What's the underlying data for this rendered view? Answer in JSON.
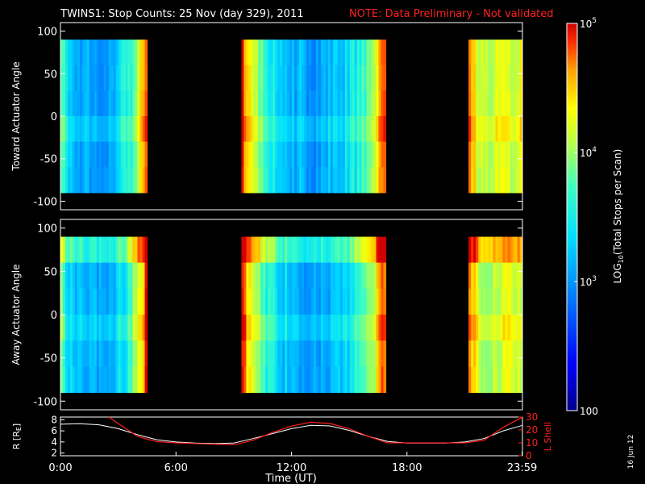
{
  "title": "TWINS1: Stop Counts: 25 Nov (day 329), 2011",
  "note": "NOTE: Data Preliminary - Not validated",
  "date_stamp": "16 Jun 12",
  "colors": {
    "background": "#000000",
    "axis": "#ffffff",
    "note": "#ff2020",
    "lshell": "#ff2020",
    "radius": "#ffffff"
  },
  "chart_data": [
    {
      "type": "heatmap",
      "ylabel": "Toward Actuator Angle",
      "ylim": [
        -110,
        110
      ],
      "yticks": [
        100,
        50,
        0,
        -50,
        -100
      ],
      "xlim_hours": [
        0,
        24
      ],
      "angle_range": [
        -90,
        90
      ],
      "data_segments_hours": [
        [
          0.0,
          4.5
        ],
        [
          9.4,
          16.9
        ],
        [
          21.2,
          23.99
        ]
      ],
      "description_values": "log10 stop counts mostly ~3 (blue) in middle of segments, ~4.7-5 (orange/red) at segment edges"
    },
    {
      "type": "heatmap",
      "ylabel": "Away Actuator Angle",
      "ylim": [
        -110,
        110
      ],
      "yticks": [
        100,
        50,
        0,
        -50,
        -100
      ],
      "xlim_hours": [
        0,
        24
      ],
      "angle_range": [
        -90,
        90
      ],
      "data_segments_hours": [
        [
          0.0,
          4.5
        ],
        [
          9.4,
          16.9
        ],
        [
          21.2,
          23.99
        ]
      ]
    },
    {
      "type": "line",
      "xlabel": "Time (UT)",
      "xticks": [
        "0:00",
        "6:00",
        "12:00",
        "18:00",
        "23:59"
      ],
      "xtick_hours": [
        0,
        6,
        12,
        18,
        23.983
      ],
      "left_axis": {
        "label": "R [RE]",
        "ylim": [
          1.5,
          8.5
        ],
        "yticks": [
          8,
          6,
          4,
          2
        ]
      },
      "right_axis": {
        "label": "L Shell",
        "ylim": [
          0,
          30
        ],
        "yticks": [
          30,
          20,
          10,
          0
        ]
      },
      "series": [
        {
          "name": "R [RE]",
          "axis": "left",
          "x": [
            0,
            1,
            2,
            3,
            4,
            5,
            6,
            7,
            8,
            9,
            10,
            11,
            12,
            13,
            14,
            15,
            16,
            17,
            18,
            19,
            20,
            21,
            22,
            23,
            24
          ],
          "y": [
            7.2,
            7.3,
            7.1,
            6.4,
            5.3,
            4.4,
            4.0,
            3.8,
            3.7,
            3.8,
            4.6,
            5.5,
            6.4,
            7.0,
            6.9,
            6.1,
            5.0,
            4.1,
            3.8,
            3.8,
            3.8,
            4.0,
            4.6,
            6.0,
            7.0
          ]
        },
        {
          "name": "L Shell",
          "axis": "right",
          "x": [
            2.5,
            3,
            4,
            5,
            6,
            7,
            8,
            9,
            10,
            11,
            12,
            13,
            14,
            15,
            16,
            17,
            18,
            19,
            20,
            21,
            22,
            23,
            24
          ],
          "y": [
            30,
            25,
            15,
            11,
            10,
            9.5,
            9,
            8.5,
            12,
            18,
            23,
            26,
            25,
            21,
            15,
            10,
            10,
            10,
            10,
            10,
            12,
            22,
            31
          ]
        }
      ]
    }
  ],
  "colorbar": {
    "label_prefix": "LOG",
    "label_sub": "10",
    "label_suffix": "(Total Stops per Scan)",
    "ticks": [
      {
        "base": "10",
        "exp": "5",
        "value": 5
      },
      {
        "base": "10",
        "exp": "4",
        "value": 4
      },
      {
        "base": "10",
        "exp": "3",
        "value": 3
      },
      {
        "base": "100",
        "exp": "",
        "value": 2
      }
    ],
    "range": [
      2,
      5
    ]
  }
}
